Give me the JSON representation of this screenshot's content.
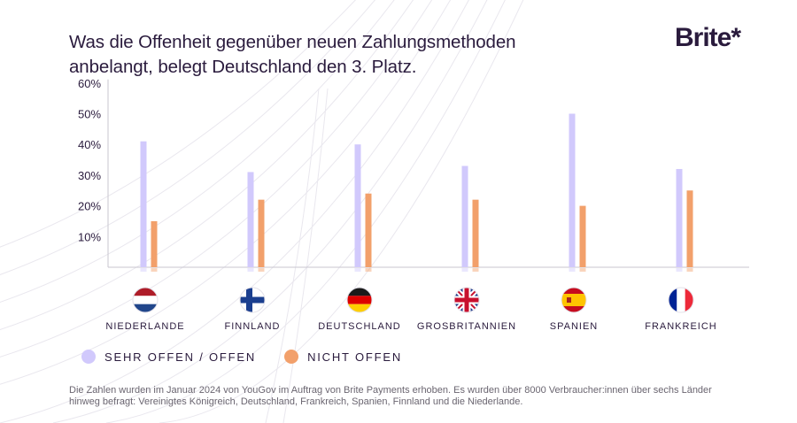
{
  "header": {
    "title": "Was die Offenheit gegenüber neuen Zahlungsmethoden anbelangt, belegt Deutschland den 3. Platz.",
    "logo": "Brite*"
  },
  "chart_data": {
    "type": "bar",
    "title": "Was die Offenheit gegenüber neuen Zahlungsmethoden anbelangt, belegt Deutschland den 3. Platz.",
    "categories": [
      "NIEDERLANDE",
      "FINNLAND",
      "DEUTSCHLAND",
      "GROSBRITANNIEN",
      "SPANIEN",
      "FRANKREICH"
    ],
    "flags": [
      "netherlands-flag-icon",
      "finland-flag-icon",
      "germany-flag-icon",
      "united-kingdom-flag-icon",
      "spain-flag-icon",
      "france-flag-icon"
    ],
    "series": [
      {
        "name": "SEHR OFFEN / OFFEN",
        "color": "#d1c9fc",
        "values": [
          41,
          31,
          40,
          33,
          50,
          32
        ]
      },
      {
        "name": "NICHT OFFEN",
        "color": "#f2a06b",
        "values": [
          15,
          22,
          24,
          22,
          20,
          25
        ]
      }
    ],
    "yticks": [
      "10%",
      "20%",
      "30%",
      "40%",
      "50%",
      "60%"
    ],
    "ylim": [
      0,
      60
    ],
    "grid": false,
    "legend": "bottom-left"
  },
  "footnote": "Die Zahlen wurden im Januar 2024 von YouGov im Auftrag von Brite Payments erhoben. Es wurden über 8000 Verbraucher:innen über sechs Länder hinweg befragt: Vereinigtes Königreich, Deutschland, Frankreich, Spanien, Finnland und die Niederlande."
}
